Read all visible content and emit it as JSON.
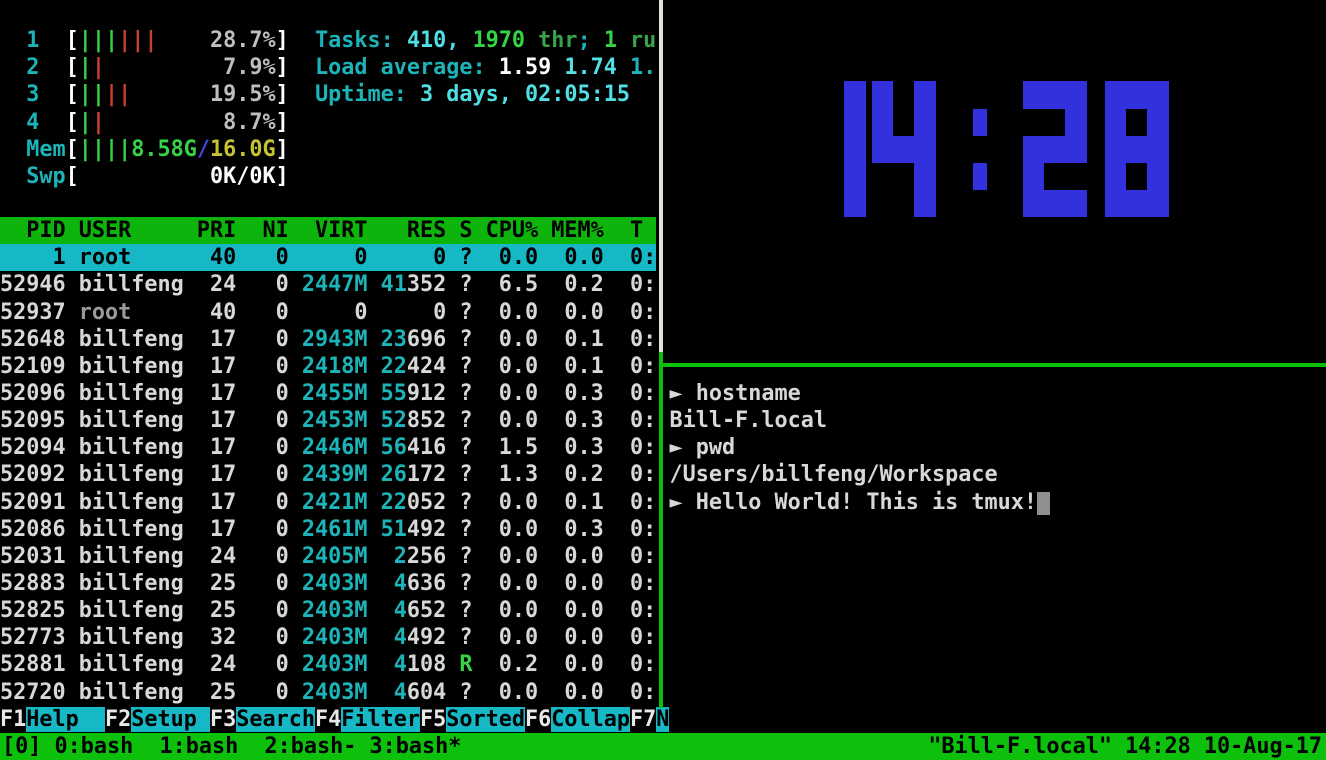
{
  "colors": {
    "clock_blue": "#3331dd",
    "border_green": "#0abf0a",
    "border_white": "#e2e2d8",
    "htop_header_green": "#0cb40c",
    "selection_cyan": "#17b8c5",
    "status_bar_green": "#0cc00c"
  },
  "htop": {
    "meter_lines": [
      {
        "name": "cpu1-meter",
        "row": 1,
        "col": 2,
        "segs": [
          [
            "1",
            "cyan"
          ],
          [
            "  ",
            ""
          ],
          [
            "[",
            "bwht"
          ],
          [
            "|||",
            "bgrn"
          ],
          [
            "|||",
            "red"
          ],
          [
            "    ",
            ""
          ],
          [
            "28.7%",
            "gray"
          ],
          [
            "]",
            "bwht"
          ]
        ]
      },
      {
        "name": "cpu2-meter",
        "row": 2,
        "col": 2,
        "segs": [
          [
            "2",
            "cyan"
          ],
          [
            "  ",
            ""
          ],
          [
            "[",
            "bwht"
          ],
          [
            "|",
            "bgrn"
          ],
          [
            "|",
            "red"
          ],
          [
            "        ",
            ""
          ],
          [
            " 7.9%",
            "gray"
          ],
          [
            "]",
            "bwht"
          ]
        ]
      },
      {
        "name": "cpu3-meter",
        "row": 3,
        "col": 2,
        "segs": [
          [
            "3",
            "cyan"
          ],
          [
            "  ",
            ""
          ],
          [
            "[",
            "bwht"
          ],
          [
            "||",
            "bgrn"
          ],
          [
            "||",
            "red"
          ],
          [
            "      ",
            ""
          ],
          [
            "19.5%",
            "gray"
          ],
          [
            "]",
            "bwht"
          ]
        ]
      },
      {
        "name": "cpu4-meter",
        "row": 4,
        "col": 2,
        "segs": [
          [
            "4",
            "cyan"
          ],
          [
            "  ",
            ""
          ],
          [
            "[",
            "bwht"
          ],
          [
            "|",
            "bgrn"
          ],
          [
            "|",
            "red"
          ],
          [
            "        ",
            ""
          ],
          [
            " 8.7%",
            "gray"
          ],
          [
            "]",
            "bwht"
          ]
        ]
      },
      {
        "name": "mem-meter",
        "row": 5,
        "col": 2,
        "segs": [
          [
            "Mem",
            "cyan"
          ],
          [
            "[",
            "bwht"
          ],
          [
            "||||",
            "bgrn"
          ],
          [
            "8.58G",
            "bgrn"
          ],
          [
            "/",
            "blu"
          ],
          [
            "16.0G",
            "yel"
          ],
          [
            "]",
            "bwht"
          ]
        ]
      },
      {
        "name": "swp-meter",
        "row": 6,
        "col": 2,
        "segs": [
          [
            "Swp",
            "cyan"
          ],
          [
            "[",
            "bwht"
          ],
          [
            "          ",
            ""
          ],
          [
            "0K/0K",
            "bwht"
          ],
          [
            "]",
            "bwht"
          ]
        ]
      }
    ],
    "text_lines": [
      {
        "name": "tasks-line",
        "row": 1,
        "col": 24,
        "segs": [
          [
            "Tasks: ",
            "cyan"
          ],
          [
            "410",
            "bcyan"
          ],
          [
            ", ",
            "bcyan"
          ],
          [
            "1970",
            "bgrn"
          ],
          [
            " thr",
            "grn"
          ],
          [
            "; ",
            "cyan"
          ],
          [
            "1",
            "bgrn"
          ],
          [
            " ru",
            "grn"
          ]
        ]
      },
      {
        "name": "load-average-line",
        "row": 2,
        "col": 24,
        "segs": [
          [
            "Load average: ",
            "cyan"
          ],
          [
            "1.59",
            "bwht"
          ],
          [
            " ",
            ""
          ],
          [
            "1.74",
            "bcyan"
          ],
          [
            " ",
            ""
          ],
          [
            "1.",
            "cyan"
          ]
        ]
      },
      {
        "name": "uptime-line",
        "row": 3,
        "col": 24,
        "segs": [
          [
            "Uptime: ",
            "cyan"
          ],
          [
            "3 days, 02:05:15",
            "bcyan"
          ]
        ]
      }
    ],
    "table": {
      "header": {
        "pid": "PID",
        "user": "USER",
        "pri": "PRI",
        "ni": "NI",
        "virt": "VIRT",
        "res": "RES",
        "s": "S",
        "cpu": "CPU%",
        "mem": "MEM%",
        "time": "T"
      },
      "rows": [
        {
          "sel": true,
          "pid": "1",
          "user": "root",
          "pri": "40",
          "ni": "0",
          "virt": "0",
          "res": "0",
          "s": "?",
          "cpu": "0.0",
          "mem": "0.0",
          "time": "0:"
        },
        {
          "pid": "52946",
          "user": "billfeng",
          "pri": "24",
          "ni": "0",
          "virt": [
            [
              "2447M",
              "cyan"
            ]
          ],
          "res": [
            [
              "41",
              "cyan"
            ],
            [
              "352",
              "wht"
            ]
          ],
          "s": "?",
          "cpu": "6.5",
          "mem": "0.2",
          "time": "0:"
        },
        {
          "pid": "52937",
          "user": [
            [
              "root",
              "dgray"
            ]
          ],
          "pri": "40",
          "ni": "0",
          "virt": "0",
          "res": "0",
          "s": "?",
          "cpu": "0.0",
          "mem": "0.0",
          "time": "0:"
        },
        {
          "pid": "52648",
          "user": "billfeng",
          "pri": "17",
          "ni": "0",
          "virt": [
            [
              "2943M",
              "cyan"
            ]
          ],
          "res": [
            [
              "23",
              "cyan"
            ],
            [
              "696",
              "wht"
            ]
          ],
          "s": "?",
          "cpu": "0.0",
          "mem": "0.1",
          "time": "0:"
        },
        {
          "pid": "52109",
          "user": "billfeng",
          "pri": "17",
          "ni": "0",
          "virt": [
            [
              "2418M",
              "cyan"
            ]
          ],
          "res": [
            [
              "22",
              "cyan"
            ],
            [
              "424",
              "wht"
            ]
          ],
          "s": "?",
          "cpu": "0.0",
          "mem": "0.1",
          "time": "0:"
        },
        {
          "pid": "52096",
          "user": "billfeng",
          "pri": "17",
          "ni": "0",
          "virt": [
            [
              "2455M",
              "cyan"
            ]
          ],
          "res": [
            [
              "55",
              "cyan"
            ],
            [
              "912",
              "wht"
            ]
          ],
          "s": "?",
          "cpu": "0.0",
          "mem": "0.3",
          "time": "0:"
        },
        {
          "pid": "52095",
          "user": "billfeng",
          "pri": "17",
          "ni": "0",
          "virt": [
            [
              "2453M",
              "cyan"
            ]
          ],
          "res": [
            [
              "52",
              "cyan"
            ],
            [
              "852",
              "wht"
            ]
          ],
          "s": "?",
          "cpu": "0.0",
          "mem": "0.3",
          "time": "0:"
        },
        {
          "pid": "52094",
          "user": "billfeng",
          "pri": "17",
          "ni": "0",
          "virt": [
            [
              "2446M",
              "cyan"
            ]
          ],
          "res": [
            [
              "56",
              "cyan"
            ],
            [
              "416",
              "wht"
            ]
          ],
          "s": "?",
          "cpu": "1.5",
          "mem": "0.3",
          "time": "0:"
        },
        {
          "pid": "52092",
          "user": "billfeng",
          "pri": "17",
          "ni": "0",
          "virt": [
            [
              "2439M",
              "cyan"
            ]
          ],
          "res": [
            [
              "26",
              "cyan"
            ],
            [
              "172",
              "wht"
            ]
          ],
          "s": "?",
          "cpu": "1.3",
          "mem": "0.2",
          "time": "0:"
        },
        {
          "pid": "52091",
          "user": "billfeng",
          "pri": "17",
          "ni": "0",
          "virt": [
            [
              "2421M",
              "cyan"
            ]
          ],
          "res": [
            [
              "22",
              "cyan"
            ],
            [
              "052",
              "wht"
            ]
          ],
          "s": "?",
          "cpu": "0.0",
          "mem": "0.1",
          "time": "0:"
        },
        {
          "pid": "52086",
          "user": "billfeng",
          "pri": "17",
          "ni": "0",
          "virt": [
            [
              "2461M",
              "cyan"
            ]
          ],
          "res": [
            [
              "51",
              "cyan"
            ],
            [
              "492",
              "wht"
            ]
          ],
          "s": "?",
          "cpu": "0.0",
          "mem": "0.3",
          "time": "0:"
        },
        {
          "pid": "52031",
          "user": "billfeng",
          "pri": "24",
          "ni": "0",
          "virt": [
            [
              "2405M",
              "cyan"
            ]
          ],
          "res": [
            [
              "2",
              "cyan"
            ],
            [
              "256",
              "wht"
            ]
          ],
          "s": "?",
          "cpu": "0.0",
          "mem": "0.0",
          "time": "0:"
        },
        {
          "pid": "52883",
          "user": "billfeng",
          "pri": "25",
          "ni": "0",
          "virt": [
            [
              "2403M",
              "cyan"
            ]
          ],
          "res": [
            [
              "4",
              "cyan"
            ],
            [
              "636",
              "wht"
            ]
          ],
          "s": "?",
          "cpu": "0.0",
          "mem": "0.0",
          "time": "0:"
        },
        {
          "pid": "52825",
          "user": "billfeng",
          "pri": "25",
          "ni": "0",
          "virt": [
            [
              "2403M",
              "cyan"
            ]
          ],
          "res": [
            [
              "4",
              "cyan"
            ],
            [
              "652",
              "wht"
            ]
          ],
          "s": "?",
          "cpu": "0.0",
          "mem": "0.0",
          "time": "0:"
        },
        {
          "pid": "52773",
          "user": "billfeng",
          "pri": "32",
          "ni": "0",
          "virt": [
            [
              "2403M",
              "cyan"
            ]
          ],
          "res": [
            [
              "4",
              "cyan"
            ],
            [
              "492",
              "wht"
            ]
          ],
          "s": "?",
          "cpu": "0.0",
          "mem": "0.0",
          "time": "0:"
        },
        {
          "pid": "52881",
          "user": "billfeng",
          "pri": "24",
          "ni": "0",
          "virt": [
            [
              "2403M",
              "cyan"
            ]
          ],
          "res": [
            [
              "4",
              "cyan"
            ],
            [
              "108",
              "wht"
            ]
          ],
          "s": [
            [
              "R",
              "bgrn"
            ]
          ],
          "cpu": "0.2",
          "mem": "0.0",
          "time": "0:"
        },
        {
          "pid": "52720",
          "user": "billfeng",
          "pri": "25",
          "ni": "0",
          "virt": [
            [
              "2403M",
              "cyan"
            ]
          ],
          "res": [
            [
              "4",
              "cyan"
            ],
            [
              "604",
              "wht"
            ]
          ],
          "s": "?",
          "cpu": "0.0",
          "mem": "0.0",
          "time": "0:"
        }
      ]
    },
    "fkeys": [
      {
        "key": "F1",
        "label": "Help  "
      },
      {
        "key": "F2",
        "label": "Setup "
      },
      {
        "key": "F3",
        "label": "Search"
      },
      {
        "key": "F4",
        "label": "Filter"
      },
      {
        "key": "F5",
        "label": "Sorted"
      },
      {
        "key": "F6",
        "label": "Collap"
      },
      {
        "key": "F7",
        "label": "N"
      }
    ]
  },
  "clock": {
    "time": "14:28"
  },
  "shell": {
    "prompt_symbol": "►",
    "lines": [
      {
        "prompt": true,
        "text": "hostname"
      },
      {
        "prompt": false,
        "text": "Bill-F.local"
      },
      {
        "prompt": true,
        "text": "pwd"
      },
      {
        "prompt": false,
        "text": "/Users/billfeng/Workspace"
      },
      {
        "prompt": true,
        "text": "Hello World! This is tmux!",
        "cursor": true
      }
    ]
  },
  "tmux_status": {
    "session_prefix": "[0] ",
    "windows": [
      "0:bash",
      "1:bash",
      "2:bash-",
      "3:bash*"
    ],
    "separators": [
      "  ",
      "  ",
      " "
    ],
    "right": "\"Bill-F.local\" 14:28 10-Aug-17"
  }
}
